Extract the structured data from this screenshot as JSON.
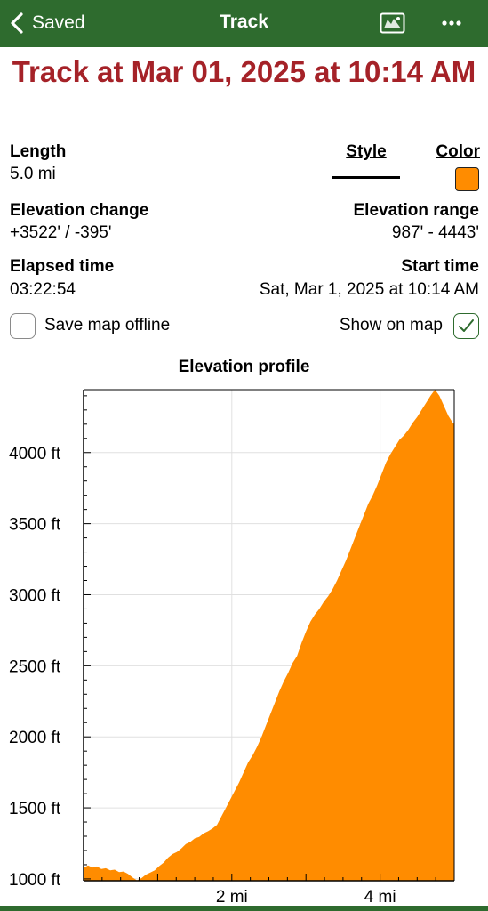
{
  "nav": {
    "back_label": "Saved",
    "title": "Track",
    "icons": [
      "chevron-left-icon",
      "map-icon",
      "more-icon"
    ]
  },
  "track": {
    "title": "Track at Mar 01, 2025 at 10:14 AM"
  },
  "stats": {
    "length_label": "Length",
    "length_value": "5.0 mi",
    "style_label": "Style",
    "color_label": "Color",
    "elev_change_label": "Elevation change",
    "elev_change_value": "+3522' / -395'",
    "elev_range_label": "Elevation range",
    "elev_range_value": "987' - 4443'",
    "elapsed_label": "Elapsed time",
    "elapsed_value": "03:22:54",
    "start_label": "Start time",
    "start_value": "Sat, Mar 1, 2025 at 10:14 AM"
  },
  "options": {
    "save_offline_label": "Save map offline",
    "save_offline_checked": false,
    "show_on_map_label": "Show on map",
    "show_on_map_checked": true
  },
  "colors": {
    "nav_bg": "#2e6b2e",
    "title": "#a52228",
    "track_color": "#ff8c00"
  },
  "chart_data": {
    "type": "area",
    "title": "Elevation profile",
    "xlabel": "",
    "ylabel": "",
    "x_unit": "mi",
    "y_unit": "ft",
    "xlim": [
      0,
      5.0
    ],
    "ylim": [
      987,
      4443
    ],
    "x_ticks": [
      2,
      4
    ],
    "x_tick_labels": [
      "2 mi",
      "4 mi"
    ],
    "y_ticks": [
      1000,
      1500,
      2000,
      2500,
      3000,
      3500,
      4000
    ],
    "y_tick_labels": [
      "1000 ft",
      "1500 ft",
      "2000 ft",
      "2500 ft",
      "3000 ft",
      "3500 ft",
      "4000 ft"
    ],
    "grid": true,
    "series": [
      {
        "color": "#ff8c00",
        "x": [
          0,
          0.06,
          0.12,
          0.18,
          0.24,
          0.3,
          0.36,
          0.42,
          0.48,
          0.54,
          0.6,
          0.66,
          0.72,
          0.78,
          0.84,
          0.9,
          0.96,
          1.02,
          1.08,
          1.14,
          1.2,
          1.26,
          1.32,
          1.38,
          1.44,
          1.5,
          1.56,
          1.62,
          1.68,
          1.74,
          1.8,
          1.86,
          1.92,
          1.98,
          2.04,
          2.1,
          2.16,
          2.22,
          2.28,
          2.34,
          2.4,
          2.46,
          2.52,
          2.58,
          2.64,
          2.7,
          2.76,
          2.82,
          2.88,
          2.94,
          3.0,
          3.06,
          3.12,
          3.18,
          3.24,
          3.3,
          3.36,
          3.42,
          3.48,
          3.54,
          3.6,
          3.66,
          3.72,
          3.78,
          3.84,
          3.9,
          3.96,
          4.02,
          4.08,
          4.14,
          4.2,
          4.26,
          4.32,
          4.38,
          4.44,
          4.5,
          4.56,
          4.62,
          4.68,
          4.74,
          4.8,
          4.86,
          4.92,
          4.98,
          5.0
        ],
        "y": [
          1078,
          1095,
          1080,
          1088,
          1070,
          1075,
          1060,
          1065,
          1048,
          1052,
          1035,
          1010,
          990,
          1005,
          1030,
          1045,
          1060,
          1090,
          1115,
          1150,
          1175,
          1190,
          1215,
          1245,
          1260,
          1285,
          1295,
          1320,
          1335,
          1355,
          1380,
          1440,
          1500,
          1560,
          1620,
          1680,
          1750,
          1820,
          1870,
          1930,
          2000,
          2080,
          2160,
          2240,
          2320,
          2390,
          2450,
          2520,
          2570,
          2660,
          2740,
          2810,
          2860,
          2900,
          2950,
          2990,
          3040,
          3100,
          3170,
          3240,
          3320,
          3400,
          3480,
          3560,
          3640,
          3700,
          3770,
          3850,
          3930,
          3990,
          4040,
          4090,
          4120,
          4160,
          4210,
          4250,
          4300,
          4350,
          4400,
          4443,
          4400,
          4330,
          4260,
          4210,
          4200
        ]
      }
    ]
  }
}
